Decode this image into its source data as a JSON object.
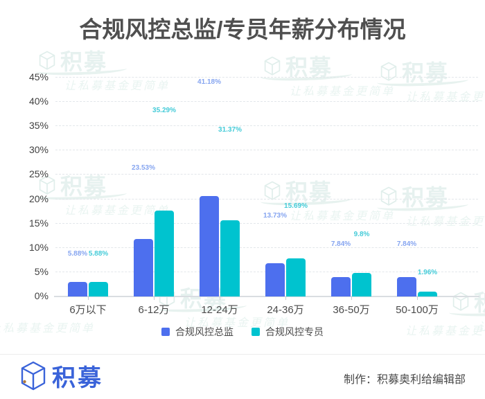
{
  "chart_data": {
    "type": "bar",
    "title": "合规风控总监/专员年薪分布情况",
    "categories": [
      "6万以下",
      "6-12万",
      "12-24万",
      "24-36万",
      "36-50万",
      "50-100万"
    ],
    "series": [
      {
        "name": "合规风控总监",
        "color": "#4d6fee",
        "label_color": "#86a5f0",
        "values": [
          5.88,
          23.53,
          41.18,
          13.73,
          7.84,
          7.84
        ],
        "labels": [
          "5.88%",
          "23.53%",
          "41.18%",
          "13.73%",
          "7.84%",
          "7.84%"
        ]
      },
      {
        "name": "合规风控专员",
        "color": "#00c3cf",
        "label_color": "#44cbd8",
        "values": [
          5.88,
          35.29,
          31.37,
          15.69,
          9.8,
          1.96
        ],
        "labels": [
          "5.88%",
          "35.29%",
          "31.37%",
          "15.69%",
          "9.8%",
          "1.96%"
        ]
      }
    ],
    "y_ticks": [
      "0%",
      "5%",
      "10%",
      "15%",
      "20%",
      "25%",
      "30%",
      "35%",
      "40%",
      "45%"
    ],
    "ylim": [
      0,
      45
    ],
    "grid": "horizontal-dashed",
    "legend_position": "bottom",
    "bar_display_factor": 0.5
  },
  "footer": {
    "brand": "积募",
    "credit": "制作：积募奥利给编辑部"
  },
  "watermark": {
    "brand": "积募",
    "tagline": "让私募基金更简单"
  }
}
